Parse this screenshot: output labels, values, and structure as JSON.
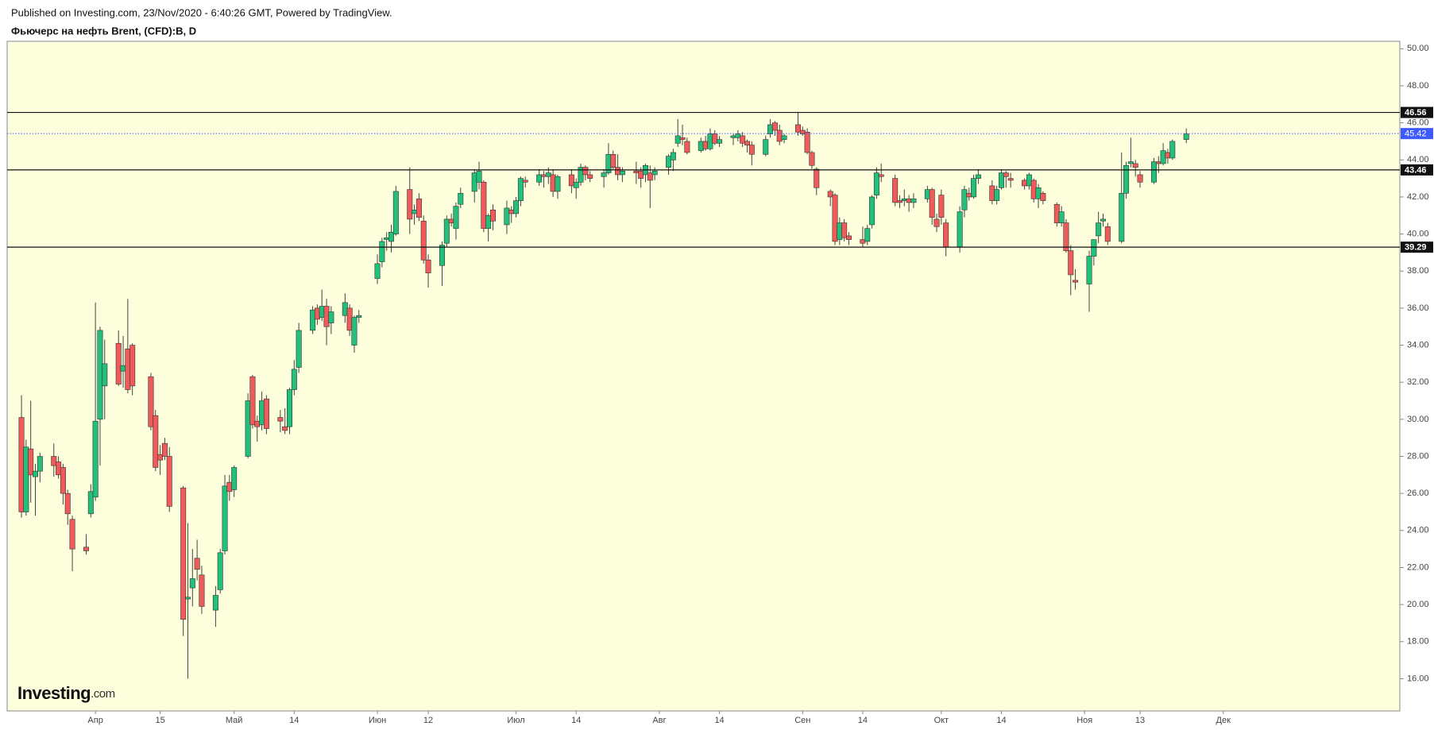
{
  "header": "Published on Investing.com, 23/Nov/2020 - 6:40:26 GMT, Powered by TradingView.",
  "watermark": {
    "brand": "Investing",
    "suffix": ".com"
  },
  "chart_data": {
    "type": "candlestick",
    "title": "Фьючерс на нефть Brent, (CFD):B, D",
    "up_color": "#22c07a",
    "down_color": "#ef5b5b",
    "wick_color": "#444444",
    "background": "#fdfedb",
    "xlim": [
      72.9,
      374.2
    ],
    "ylim": [
      14.26,
      50.4
    ],
    "xticks": [
      {
        "value": 92,
        "label": "Апр"
      },
      {
        "value": 106,
        "label": "15"
      },
      {
        "value": 122,
        "label": "Май"
      },
      {
        "value": 135,
        "label": "14"
      },
      {
        "value": 153,
        "label": "Июн"
      },
      {
        "value": 164,
        "label": "12"
      },
      {
        "value": 183,
        "label": "Июл"
      },
      {
        "value": 196,
        "label": "14"
      },
      {
        "value": 214,
        "label": "Авг"
      },
      {
        "value": 227,
        "label": "14"
      },
      {
        "value": 245,
        "label": "Сен"
      },
      {
        "value": 258,
        "label": "14"
      },
      {
        "value": 275,
        "label": "Окт"
      },
      {
        "value": 288,
        "label": "14"
      },
      {
        "value": 306,
        "label": "Ноя"
      },
      {
        "value": 318,
        "label": "13"
      },
      {
        "value": 336,
        "label": "Дек"
      }
    ],
    "yticks": [
      {
        "value": 16,
        "label": "16.00"
      },
      {
        "value": 18,
        "label": "18.00"
      },
      {
        "value": 20,
        "label": "20.00"
      },
      {
        "value": 22,
        "label": "22.00"
      },
      {
        "value": 24,
        "label": "24.00"
      },
      {
        "value": 26,
        "label": "26.00"
      },
      {
        "value": 28,
        "label": "28.00"
      },
      {
        "value": 30,
        "label": "30.00"
      },
      {
        "value": 32,
        "label": "32.00"
      },
      {
        "value": 34,
        "label": "34.00"
      },
      {
        "value": 36,
        "label": "36.00"
      },
      {
        "value": 38,
        "label": "38.00"
      },
      {
        "value": 40,
        "label": "40.00"
      },
      {
        "value": 42,
        "label": "42.00"
      },
      {
        "value": 44,
        "label": "44.00"
      },
      {
        "value": 46,
        "label": "46.00"
      },
      {
        "value": 48,
        "label": "48.00"
      },
      {
        "value": 50,
        "label": "50.00"
      }
    ],
    "horizontal_lines": [
      46.56,
      43.46,
      39.29
    ],
    "horizontal_line_color": "#111111",
    "last_price": 45.42,
    "last_price_color": "#3d5afe",
    "x": [
      76,
      77,
      78,
      79,
      80,
      83,
      84,
      85,
      86,
      87,
      90,
      91,
      92,
      93,
      94,
      97,
      98,
      99,
      100,
      104,
      105,
      106,
      107,
      108,
      111,
      112,
      113,
      114,
      115,
      118,
      119,
      120,
      121,
      122,
      125,
      126,
      127,
      128,
      129,
      132,
      133,
      134,
      135,
      136,
      139,
      140,
      141,
      142,
      143,
      146,
      147,
      148,
      149,
      153,
      154,
      155,
      156,
      157,
      160,
      161,
      162,
      163,
      164,
      167,
      168,
      169,
      170,
      171,
      174,
      175,
      176,
      177,
      178,
      181,
      182,
      183,
      184,
      185,
      188,
      189,
      190,
      191,
      192,
      195,
      196,
      197,
      198,
      199,
      202,
      203,
      204,
      205,
      206,
      209,
      210,
      211,
      212,
      213,
      216,
      217,
      218,
      219,
      220,
      223,
      224,
      225,
      226,
      227,
      230,
      231,
      232,
      233,
      234,
      237,
      238,
      239,
      240,
      241,
      244,
      245,
      246,
      247,
      248,
      251,
      252,
      253,
      254,
      255,
      258,
      259,
      260,
      261,
      262,
      265,
      266,
      267,
      268,
      269,
      272,
      273,
      274,
      275,
      276,
      279,
      280,
      281,
      282,
      283,
      286,
      287,
      288,
      289,
      290,
      293,
      294,
      295,
      296,
      297,
      300,
      301,
      302,
      303,
      304,
      307,
      308,
      309,
      310,
      311,
      314,
      315,
      316,
      317,
      318,
      321,
      322,
      323,
      324,
      325,
      328
    ],
    "open": [
      30.1,
      25.0,
      28.4,
      26.9,
      27.2,
      28.0,
      27.7,
      27.4,
      26.0,
      24.6,
      23.1,
      24.9,
      25.8,
      30.0,
      31.8,
      34.1,
      32.6,
      33.8,
      34.0,
      32.3,
      30.2,
      28.1,
      28.7,
      28.0,
      26.3,
      20.3,
      20.9,
      22.5,
      21.6,
      19.7,
      20.8,
      22.9,
      26.6,
      26.2,
      28.0,
      32.3,
      29.9,
      29.7,
      31.1,
      30.1,
      29.6,
      29.6,
      31.6,
      32.8,
      34.8,
      36.0,
      35.5,
      36.1,
      35.2,
      35.6,
      36.0,
      34.0,
      35.5,
      37.6,
      38.5,
      39.7,
      39.6,
      40.0,
      42.4,
      41.1,
      41.9,
      40.7,
      38.6,
      38.3,
      39.5,
      40.8,
      40.3,
      41.6,
      42.3,
      42.8,
      42.8,
      40.3,
      41.3,
      40.5,
      41.3,
      41.1,
      41.8,
      42.9,
      42.8,
      43.2,
      43.1,
      43.2,
      42.3,
      43.2,
      42.5,
      42.8,
      43.6,
      43.2,
      43.1,
      43.3,
      44.3,
      43.6,
      43.2,
      43.4,
      43.4,
      43.2,
      43.3,
      43.2,
      43.6,
      44.0,
      44.9,
      45.2,
      45.0,
      44.5,
      45.0,
      44.6,
      45.4,
      44.9,
      45.2,
      45.2,
      45.3,
      45.0,
      44.8,
      44.3,
      45.4,
      46.0,
      45.6,
      45.1,
      45.9,
      45.6,
      45.5,
      44.4,
      43.5,
      42.3,
      42.1,
      39.7,
      40.6,
      39.9,
      39.7,
      39.6,
      40.5,
      42.1,
      43.2,
      43.0,
      41.8,
      41.8,
      41.9,
      41.7,
      41.9,
      42.4,
      40.8,
      42.1,
      40.6,
      39.3,
      41.3,
      42.2,
      42.0,
      43.0,
      42.6,
      41.8,
      42.5,
      43.3,
      43.0,
      42.9,
      42.6,
      42.9,
      41.9,
      42.2,
      41.6,
      40.6,
      40.6,
      39.1,
      37.5,
      37.3,
      38.8,
      39.9,
      40.7,
      40.4,
      39.6,
      42.2,
      43.8,
      43.8,
      43.2,
      42.8,
      43.9,
      43.8,
      44.4,
      44.1,
      45.1
    ],
    "high": [
      31.3,
      28.9,
      31.0,
      27.6,
      28.2,
      28.7,
      28.0,
      27.6,
      26.2,
      24.8,
      23.8,
      26.5,
      36.3,
      35.0,
      34.3,
      34.8,
      34.5,
      36.5,
      34.1,
      32.5,
      30.5,
      28.6,
      29.0,
      28.5,
      26.4,
      24.4,
      23.0,
      23.5,
      22.1,
      21.0,
      23.0,
      27.0,
      27.0,
      27.5,
      31.4,
      32.4,
      30.2,
      31.5,
      31.3,
      30.5,
      30.6,
      31.7,
      33.2,
      35.2,
      36.1,
      36.2,
      37.0,
      36.5,
      36.1,
      36.8,
      36.2,
      35.6,
      35.9,
      38.9,
      39.8,
      40.1,
      40.5,
      42.6,
      43.6,
      41.6,
      42.2,
      41.0,
      38.9,
      39.6,
      41.0,
      41.1,
      41.7,
      42.5,
      43.5,
      43.9,
      42.9,
      41.1,
      41.6,
      41.8,
      41.5,
      42.0,
      43.1,
      43.1,
      43.5,
      43.4,
      43.6,
      43.5,
      43.2,
      43.5,
      43.0,
      43.8,
      43.7,
      43.4,
      43.5,
      44.9,
      44.5,
      44.3,
      43.6,
      43.9,
      43.6,
      43.8,
      43.7,
      43.6,
      44.3,
      44.6,
      46.2,
      45.9,
      45.2,
      45.2,
      45.3,
      45.7,
      45.6,
      45.3,
      45.4,
      45.6,
      45.5,
      45.1,
      45.0,
      45.3,
      46.2,
      46.1,
      45.9,
      45.4,
      46.6,
      45.8,
      45.7,
      44.5,
      43.6,
      42.4,
      42.2,
      40.9,
      40.8,
      40.1,
      40.4,
      40.5,
      42.1,
      43.6,
      43.8,
      43.2,
      42.1,
      42.4,
      42.1,
      42.2,
      42.6,
      42.5,
      41.1,
      42.4,
      40.8,
      41.5,
      42.6,
      42.5,
      43.2,
      43.5,
      42.9,
      42.6,
      43.5,
      43.4,
      43.3,
      43.0,
      43.3,
      43.0,
      42.7,
      42.3,
      41.7,
      41.5,
      40.8,
      39.4,
      38.1,
      39.1,
      39.7,
      41.2,
      41.1,
      40.6,
      44.4,
      43.9,
      45.2,
      44.0,
      43.4,
      44.1,
      44.2,
      44.9,
      44.6,
      45.1,
      45.7
    ],
    "low": [
      24.7,
      24.8,
      25.5,
      24.8,
      26.6,
      26.9,
      26.8,
      25.4,
      24.3,
      21.8,
      22.7,
      24.7,
      25.6,
      27.5,
      30.0,
      31.8,
      31.7,
      31.4,
      31.3,
      29.4,
      27.2,
      27.0,
      27.8,
      25.0,
      18.3,
      16.0,
      19.9,
      21.3,
      19.5,
      18.8,
      20.6,
      22.7,
      25.6,
      25.8,
      27.9,
      29.5,
      28.8,
      29.4,
      29.2,
      29.3,
      29.2,
      29.2,
      31.3,
      32.5,
      34.6,
      35.1,
      35.3,
      34.0,
      34.6,
      35.2,
      34.5,
      33.6,
      35.2,
      37.3,
      38.2,
      39.1,
      39.0,
      39.9,
      40.0,
      40.5,
      40.7,
      38.4,
      37.1,
      37.2,
      39.3,
      40.4,
      39.7,
      41.4,
      41.7,
      42.4,
      40.1,
      39.6,
      40.2,
      40.0,
      40.6,
      40.9,
      41.5,
      42.5,
      42.6,
      42.5,
      42.7,
      42.0,
      41.9,
      42.2,
      41.9,
      42.6,
      42.9,
      42.8,
      42.5,
      43.2,
      43.5,
      42.9,
      42.8,
      42.7,
      42.5,
      42.8,
      41.4,
      42.9,
      43.2,
      43.4,
      44.7,
      44.8,
      44.3,
      44.4,
      44.5,
      44.5,
      44.8,
      44.7,
      44.8,
      45.0,
      44.7,
      44.4,
      43.7,
      44.2,
      45.2,
      45.3,
      44.8,
      44.9,
      45.3,
      45.3,
      44.3,
      43.5,
      42.1,
      41.5,
      39.4,
      39.4,
      39.6,
      39.4,
      39.3,
      39.4,
      40.3,
      41.9,
      42.8,
      41.5,
      41.4,
      41.5,
      41.2,
      41.4,
      41.7,
      40.5,
      40.1,
      40.5,
      38.8,
      39.0,
      40.9,
      41.8,
      41.9,
      42.7,
      41.6,
      41.6,
      42.4,
      42.5,
      42.5,
      42.4,
      42.4,
      41.7,
      41.4,
      41.6,
      40.4,
      40.4,
      39.0,
      36.7,
      37.0,
      35.8,
      38.3,
      39.5,
      40.4,
      39.4,
      39.5,
      41.9,
      43.6,
      43.1,
      42.5,
      42.7,
      43.3,
      43.7,
      43.8,
      44.0,
      44.9
    ],
    "close": [
      25.0,
      28.5,
      27.0,
      27.2,
      28.0,
      27.5,
      27.0,
      26.0,
      24.9,
      23.0,
      22.9,
      26.1,
      29.9,
      34.8,
      33.0,
      31.9,
      32.9,
      31.6,
      31.8,
      29.6,
      27.4,
      27.8,
      28.0,
      25.3,
      19.2,
      20.4,
      21.4,
      21.9,
      19.9,
      20.5,
      22.8,
      26.4,
      26.1,
      27.4,
      31.0,
      29.7,
      29.6,
      31.0,
      29.5,
      29.9,
      29.4,
      31.6,
      32.7,
      34.8,
      35.9,
      35.4,
      36.1,
      35.0,
      35.8,
      36.3,
      34.8,
      35.5,
      35.6,
      38.4,
      39.6,
      39.8,
      40.1,
      42.3,
      40.8,
      41.3,
      40.9,
      38.6,
      37.9,
      39.4,
      40.8,
      40.6,
      41.5,
      42.2,
      43.3,
      43.4,
      40.3,
      41.0,
      40.7,
      41.4,
      41.1,
      41.8,
      43.0,
      42.8,
      43.2,
      43.1,
      43.3,
      42.3,
      43.1,
      42.6,
      42.8,
      43.6,
      43.2,
      43.0,
      43.3,
      44.3,
      43.6,
      43.2,
      43.4,
      43.3,
      43.0,
      43.7,
      42.9,
      43.4,
      44.2,
      44.4,
      45.3,
      45.1,
      44.4,
      45.0,
      44.6,
      45.4,
      44.9,
      45.1,
      45.3,
      45.4,
      44.9,
      44.8,
      44.3,
      45.1,
      45.9,
      45.6,
      45.0,
      45.3,
      45.5,
      45.4,
      44.4,
      43.7,
      42.5,
      42.0,
      39.6,
      40.6,
      39.8,
      39.7,
      39.5,
      40.3,
      42.0,
      43.3,
      43.1,
      41.7,
      41.7,
      41.9,
      41.7,
      41.9,
      42.4,
      40.9,
      40.4,
      40.9,
      39.3,
      41.2,
      42.4,
      42.0,
      43.0,
      43.2,
      41.8,
      42.4,
      43.3,
      43.1,
      42.9,
      42.6,
      43.2,
      41.9,
      42.5,
      41.8,
      40.6,
      41.2,
      39.1,
      37.8,
      37.4,
      38.8,
      39.7,
      40.6,
      40.8,
      39.6,
      42.2,
      43.7,
      43.9,
      43.6,
      42.8,
      43.9,
      43.8,
      44.5,
      44.1,
      45.0,
      45.4
    ]
  }
}
